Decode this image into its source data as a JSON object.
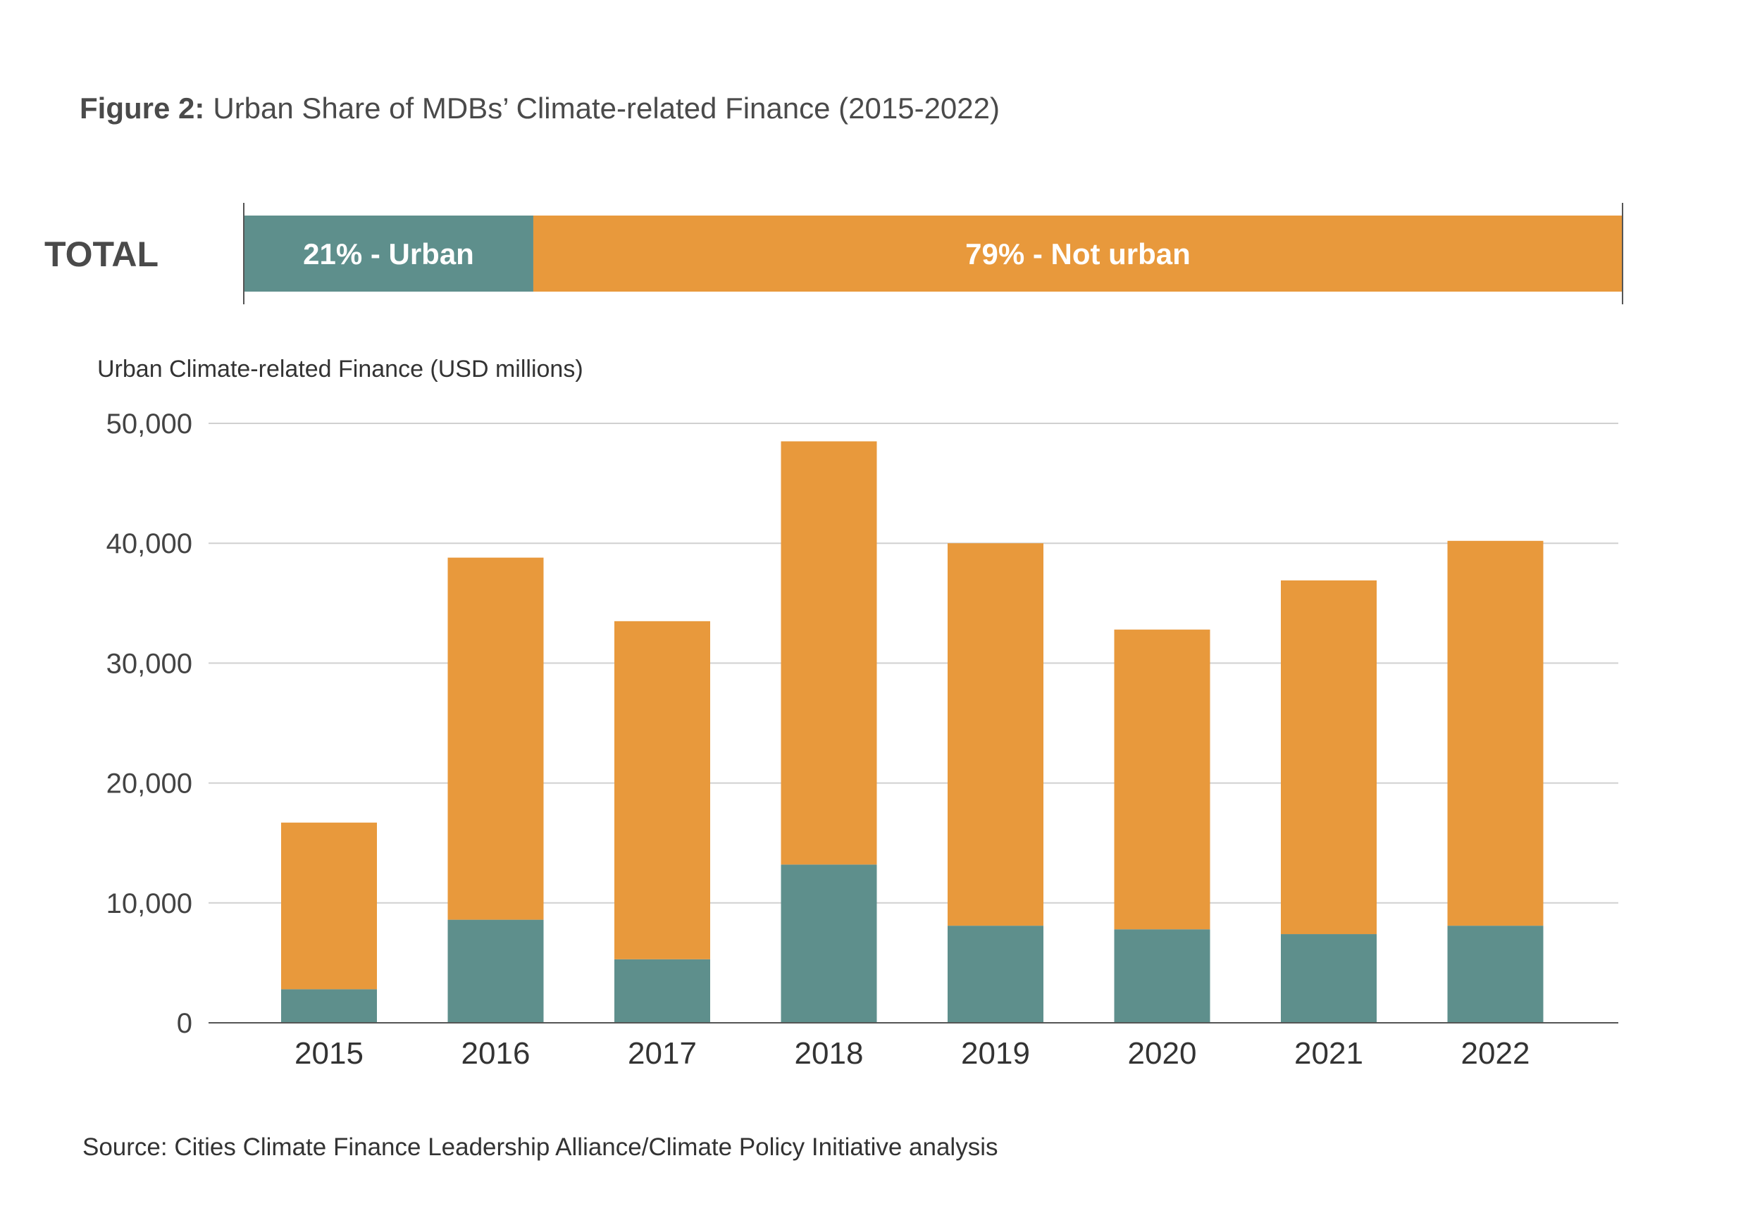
{
  "figure": {
    "label": "Figure 2:",
    "title": "Urban Share of MDBs’ Climate-related Finance (2015-2022)"
  },
  "total_bar": {
    "row_label": "TOTAL",
    "segments": [
      {
        "name": "Urban",
        "label": "21% - Urban",
        "share": 0.21,
        "color": "#5e8f8c"
      },
      {
        "name": "Not urban",
        "label": "79% - Not urban",
        "share": 0.79,
        "color": "#e8993c"
      }
    ]
  },
  "source": "Source: Cities Climate Finance Leadership Alliance/Climate Policy Initiative analysis",
  "chart_data": {
    "type": "bar",
    "stacked": true,
    "ylabel": "Urban Climate-related Finance (USD millions)",
    "ylim": [
      0,
      50000
    ],
    "yticks": [
      0,
      10000,
      20000,
      30000,
      40000,
      50000
    ],
    "ytick_labels": [
      "0",
      "10,000",
      "20,000",
      "30,000",
      "40,000",
      "50,000"
    ],
    "grid": true,
    "categories": [
      "2015",
      "2016",
      "2017",
      "2018",
      "2019",
      "2020",
      "2021",
      "2022"
    ],
    "series": [
      {
        "color": "#5e8f8c",
        "values": [
          2800,
          8600,
          5300,
          13200,
          8100,
          7800,
          7400,
          8100
        ]
      },
      {
        "color": "#e8993c",
        "values": [
          13900,
          30200,
          28200,
          35300,
          31900,
          25000,
          29500,
          32100
        ]
      }
    ]
  }
}
